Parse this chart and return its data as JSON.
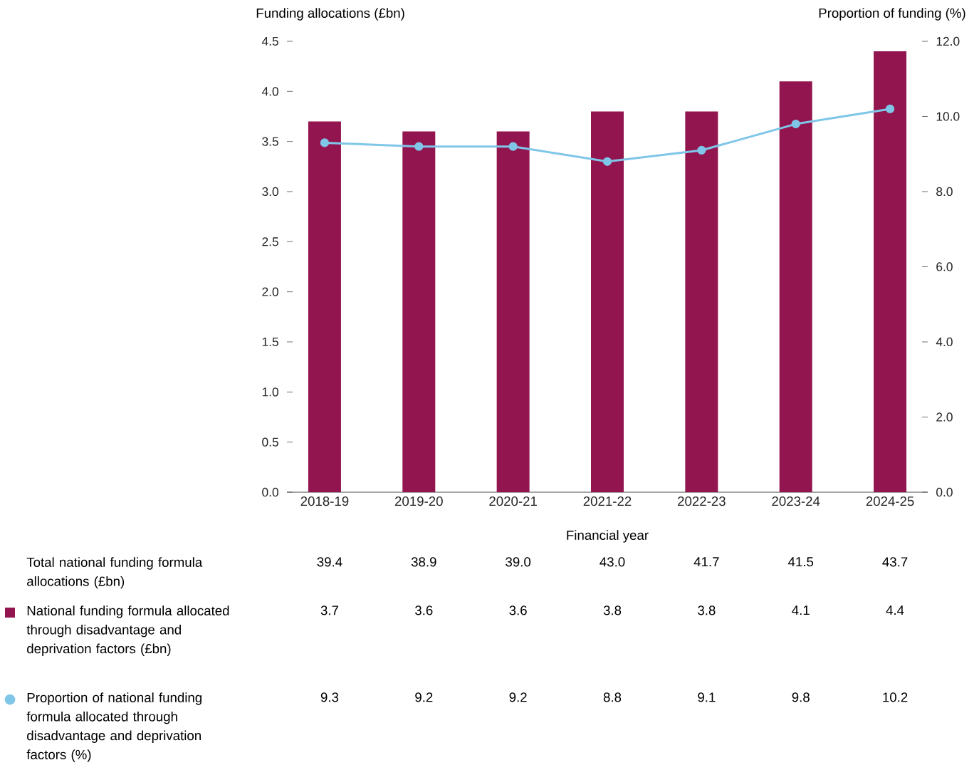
{
  "chart_data": {
    "type": "bar",
    "xlabel": "Financial year",
    "ylabel": "Funding allocations (£bn)",
    "y2label": "Proportion of funding (%)",
    "categories": [
      "2018-19",
      "2019-20",
      "2020-21",
      "2021-22",
      "2022-23",
      "2023-24",
      "2024-25"
    ],
    "series": [
      {
        "name": "National funding formula allocated through disadvantage and deprivation factors (£bn)",
        "color": "#93154f",
        "values": [
          3.7,
          3.6,
          3.6,
          3.8,
          3.8,
          4.1,
          4.4
        ]
      },
      {
        "name": "Proportion of national funding formula allocated through disadvantage and deprivation factors (%)",
        "type": "line",
        "axis": "y2",
        "color": "#7fc6e8",
        "marker": "circle",
        "line_style": "solid",
        "values": [
          9.3,
          9.2,
          9.2,
          8.8,
          9.1,
          9.8,
          10.2
        ]
      }
    ],
    "ylim": [
      0,
      4.5
    ],
    "yticks": [
      {
        "value": 0,
        "label": "0.0"
      },
      {
        "value": 0.5,
        "label": "0.5"
      },
      {
        "value": 1,
        "label": "1.0"
      },
      {
        "value": 1.5,
        "label": "1.5"
      },
      {
        "value": 2,
        "label": "2.0"
      },
      {
        "value": 2.5,
        "label": "2.5"
      },
      {
        "value": 3,
        "label": "3.0"
      },
      {
        "value": 3.5,
        "label": "3.5"
      },
      {
        "value": 4,
        "label": "4.0"
      },
      {
        "value": 4.5,
        "label": "4.5"
      }
    ],
    "y2lim": [
      0,
      12
    ],
    "y2ticks": [
      {
        "value": 0,
        "label": "0.0"
      },
      {
        "value": 2,
        "label": "2.0"
      },
      {
        "value": 4,
        "label": "4.0"
      },
      {
        "value": 6,
        "label": "6.0"
      },
      {
        "value": 8,
        "label": "8.0"
      },
      {
        "value": 10,
        "label": "10.0"
      },
      {
        "value": 12,
        "label": "12.0"
      }
    ],
    "data_labels": true,
    "legend": "bottom left",
    "annotations": [
      "Total national funding formula allocations (£bn)",
      "39.4",
      "38.9",
      "39.0",
      "43.0",
      "41.7",
      "41.5",
      "43.7"
    ]
  }
}
